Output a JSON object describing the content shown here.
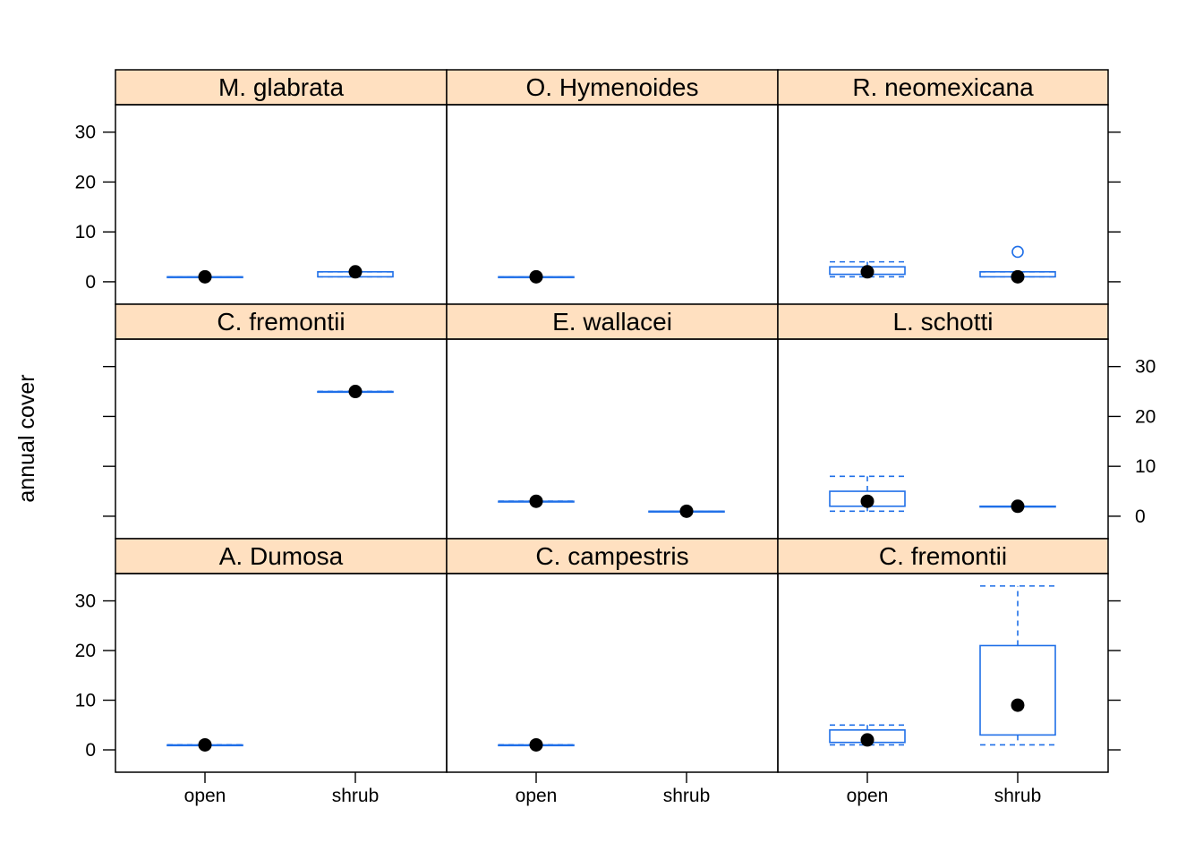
{
  "chart_data": {
    "type": "box",
    "ylabel": "annual cover",
    "ylim": [
      -4.5,
      35.5
    ],
    "yticks": [
      0,
      10,
      20,
      30
    ],
    "categories": [
      "open",
      "shrub"
    ],
    "colors": {
      "strip_fill": "#FFE0C0",
      "box": "#1F6FE8",
      "median_dot": "#000000",
      "frame": "#000000"
    },
    "panels": [
      {
        "title": "M. glabrata",
        "boxes": [
          {
            "category": "open",
            "min": 1,
            "q1": 1,
            "median": 1,
            "q3": 1,
            "max": 1,
            "outliers": []
          },
          {
            "category": "shrub",
            "min": 1,
            "q1": 1,
            "median": 2,
            "q3": 2,
            "max": 2,
            "outliers": []
          }
        ]
      },
      {
        "title": "O. Hymenoides",
        "boxes": [
          {
            "category": "open",
            "min": 1,
            "q1": 1,
            "median": 1,
            "q3": 1,
            "max": 1,
            "outliers": []
          }
        ]
      },
      {
        "title": "R. neomexicana",
        "boxes": [
          {
            "category": "open",
            "min": 1,
            "q1": 1.5,
            "median": 2,
            "q3": 3,
            "max": 4,
            "outliers": []
          },
          {
            "category": "shrub",
            "min": 1,
            "q1": 1,
            "median": 1,
            "q3": 2,
            "max": 2,
            "outliers": [
              6
            ]
          }
        ]
      },
      {
        "title": "C. fremontii",
        "boxes": [
          {
            "category": "shrub",
            "min": 25,
            "q1": 25,
            "median": 25,
            "q3": 25,
            "max": 25,
            "outliers": []
          }
        ]
      },
      {
        "title": "E. wallacei",
        "boxes": [
          {
            "category": "open",
            "min": 3,
            "q1": 3,
            "median": 3,
            "q3": 3,
            "max": 3,
            "outliers": []
          },
          {
            "category": "shrub",
            "min": 1,
            "q1": 1,
            "median": 1,
            "q3": 1,
            "max": 1,
            "outliers": []
          }
        ]
      },
      {
        "title": "L. schotti",
        "boxes": [
          {
            "category": "open",
            "min": 1,
            "q1": 2,
            "median": 3,
            "q3": 5,
            "max": 8,
            "outliers": []
          },
          {
            "category": "shrub",
            "min": 2,
            "q1": 2,
            "median": 2,
            "q3": 2,
            "max": 2,
            "outliers": []
          }
        ]
      },
      {
        "title": "A. Dumosa",
        "boxes": [
          {
            "category": "open",
            "min": 1,
            "q1": 1,
            "median": 1,
            "q3": 1,
            "max": 1,
            "outliers": []
          }
        ]
      },
      {
        "title": "C. campestris",
        "boxes": [
          {
            "category": "open",
            "min": 1,
            "q1": 1,
            "median": 1,
            "q3": 1,
            "max": 1,
            "outliers": []
          }
        ]
      },
      {
        "title": "C. fremontii",
        "boxes": [
          {
            "category": "open",
            "min": 1,
            "q1": 1.5,
            "median": 2,
            "q3": 4,
            "max": 5,
            "outliers": []
          },
          {
            "category": "shrub",
            "min": 1,
            "q1": 3,
            "median": 9,
            "q3": 21,
            "max": 33,
            "outliers": []
          }
        ]
      }
    ]
  }
}
